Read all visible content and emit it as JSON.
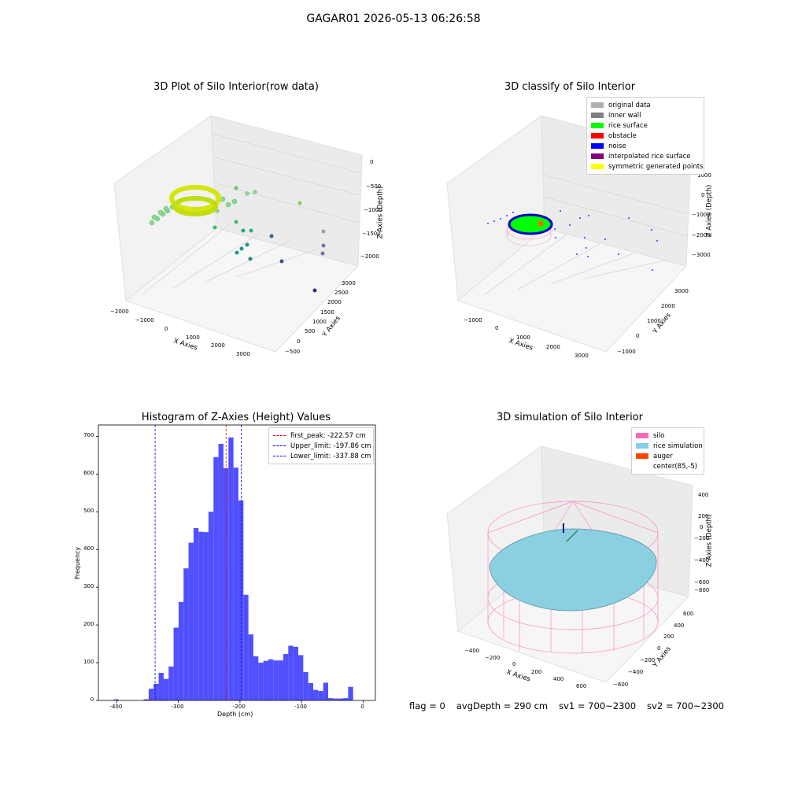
{
  "figure": {
    "suptitle": "GAGAR01 2026-05-13 06:26:58"
  },
  "footer": {
    "flag": "flag = 0",
    "avg_depth": "avgDepth = 290 cm",
    "sv1": "sv1 = 700~2300",
    "sv2": "sv2 = 700~2300"
  },
  "panels": {
    "raw": {
      "title": "3D Plot of Silo Interior(row data)",
      "xlabel": "X Axies",
      "ylabel": "Y Axies",
      "zlabel": "Z Axies (Depth)",
      "xticks": [
        "−2000",
        "−1000",
        "0",
        "1000",
        "2000",
        "3000"
      ],
      "yticks": [
        "−500",
        "0",
        "500",
        "1000",
        "1500",
        "2000",
        "2500",
        "3000"
      ],
      "zticks": [
        "0",
        "−500",
        "−1000",
        "−1500",
        "−2000"
      ]
    },
    "classify": {
      "title": "3D classify of Silo Interior",
      "xlabel": "X Axies",
      "ylabel": "Y Axies",
      "zlabel": "Z Axies (Depth)",
      "xticks": [
        "−1000",
        "0",
        "1000",
        "2000",
        "3000"
      ],
      "yticks": [
        "−1000",
        "0",
        "1000",
        "2000",
        "3000"
      ],
      "zticks": [
        "1000",
        "0",
        "−1000",
        "−2000",
        "−3000"
      ],
      "legend": [
        {
          "label": "original data",
          "color": "#b0b0b0"
        },
        {
          "label": "inner wall",
          "color": "#808080"
        },
        {
          "label": "rice surface",
          "color": "#00ff00"
        },
        {
          "label": "obstacle",
          "color": "#ff0000"
        },
        {
          "label": "noise",
          "color": "#0000ff"
        },
        {
          "label": "interpolated rice surface",
          "color": "#800080"
        },
        {
          "label": "symmetric generated points",
          "color": "#ffff00"
        }
      ]
    },
    "simulation": {
      "title": "3D simulation of Silo Interior",
      "xlabel": "X Axies",
      "ylabel": "Y Axies",
      "zlabel": "Z Axies (Depth)",
      "xticks": [
        "−400",
        "−200",
        "0",
        "200",
        "400",
        "600"
      ],
      "yticks": [
        "−600",
        "−400",
        "−200",
        "0",
        "200",
        "400",
        "600"
      ],
      "zticks": [
        "400",
        "200",
        "0",
        "−200",
        "−400",
        "−600",
        "−800"
      ],
      "legend": [
        {
          "label": "silo",
          "color": "#ff69b4"
        },
        {
          "label": "rice simulation",
          "color": "#87ceeb"
        },
        {
          "label": "auger",
          "color": "#ff4500"
        },
        {
          "label": "center(85,-5)",
          "color": "#ffffff"
        }
      ]
    }
  },
  "chart_data": {
    "type": "bar",
    "title": "Histogram of Z-Axies (Height) Values",
    "xlabel": "Depth (cm)",
    "ylabel": "Frequency",
    "xlim": [
      -430,
      20
    ],
    "ylim": [
      0,
      730
    ],
    "xticks": [
      -400,
      -300,
      -200,
      -100,
      0
    ],
    "yticks": [
      0,
      100,
      200,
      300,
      400,
      500,
      600,
      700
    ],
    "bar_color": "#5050ff",
    "bin_start": -405,
    "bin_width": 8.1,
    "values": [
      3,
      0,
      0,
      0,
      0,
      0,
      3,
      31,
      44,
      73,
      57,
      90,
      193,
      261,
      350,
      418,
      457,
      447,
      446,
      500,
      645,
      680,
      616,
      697,
      617,
      530,
      280,
      175,
      117,
      100,
      105,
      109,
      106,
      106,
      123,
      145,
      142,
      120,
      75,
      46,
      28,
      25,
      47,
      6,
      5,
      5,
      6,
      36
    ],
    "vlines": [
      {
        "label": "first_peak: -222.57 cm",
        "x": -222.57,
        "color": "#ff0000"
      },
      {
        "label": "Upper_limit: -197.86 cm",
        "x": -197.86,
        "color": "#0000ff"
      },
      {
        "label": "Lower_limit: -337.88 cm",
        "x": -337.88,
        "color": "#0000ff"
      }
    ],
    "legend_position": "top-right",
    "grid": false
  }
}
